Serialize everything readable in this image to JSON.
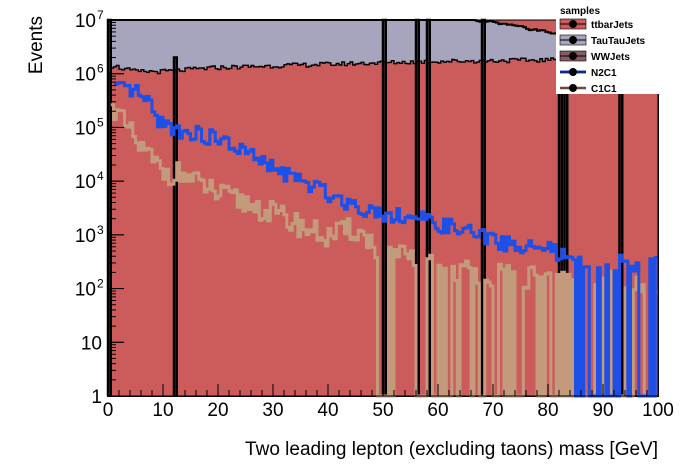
{
  "chart_data": {
    "type": "histogram",
    "title": "",
    "xlabel": "Two leading lepton (excluding taons) mass [GeV]",
    "ylabel": "Events",
    "xlim": [
      0,
      100
    ],
    "ylim": [
      1,
      10000000
    ],
    "yscale": "log",
    "grid": false,
    "x_ticks": [
      "0",
      "10",
      "20",
      "30",
      "40",
      "50",
      "60",
      "70",
      "80",
      "90",
      "100"
    ],
    "y_ticks": [
      {
        "value": 1,
        "label": "1"
      },
      {
        "value": 10,
        "label": "10"
      },
      {
        "value": 100,
        "label": "10",
        "exp": "2"
      },
      {
        "value": 1000,
        "label": "10",
        "exp": "3"
      },
      {
        "value": 10000,
        "label": "10",
        "exp": "4"
      },
      {
        "value": 100000,
        "label": "10",
        "exp": "5"
      },
      {
        "value": 1000000,
        "label": "10",
        "exp": "6"
      },
      {
        "value": 10000000,
        "label": "10",
        "exp": "7"
      }
    ],
    "legend_title": "samples",
    "legend_position": "top-right",
    "colors": {
      "ttbarJets": "#cc5c5c",
      "TauTauJets": "#a6a5bd",
      "WWJets": "#8c5a62",
      "N2C1": "#1e4fe6",
      "C1C1": "#c49a7c"
    },
    "series": [
      {
        "name": "ttbarJets",
        "style": "stacked-fill",
        "knots": [
          [
            0,
            25000
          ],
          [
            0.5,
            25000
          ],
          [
            1,
            350000
          ],
          [
            3,
            600000
          ],
          [
            5,
            700000
          ],
          [
            10,
            750000
          ],
          [
            20,
            780000
          ],
          [
            40,
            790000
          ],
          [
            50,
            800000
          ],
          [
            70,
            800000
          ],
          [
            90,
            810000
          ],
          [
            100,
            820000
          ]
        ],
        "spikes": [
          [
            0,
            10000000
          ],
          [
            12,
            2000000
          ],
          [
            50,
            10000000
          ],
          [
            56,
            10000000
          ],
          [
            58,
            10000000
          ],
          [
            68,
            10000000
          ],
          [
            82,
            10000000
          ],
          [
            83,
            10000000
          ],
          [
            93,
            10000000
          ]
        ]
      },
      {
        "name": "TauTauJets",
        "style": "stacked-fill",
        "knots": [
          [
            0,
            1000000
          ],
          [
            1,
            1500000
          ],
          [
            2,
            1300000
          ],
          [
            5,
            1100000
          ],
          [
            10,
            1100000
          ],
          [
            15,
            1200000
          ],
          [
            20,
            1300000
          ],
          [
            30,
            1400000
          ],
          [
            40,
            1500000
          ],
          [
            50,
            1600000
          ],
          [
            60,
            1700000
          ],
          [
            70,
            1750000
          ],
          [
            80,
            1800000
          ],
          [
            90,
            1800000
          ],
          [
            100,
            1900000
          ]
        ]
      },
      {
        "name": "WWJets",
        "style": "stacked-fill",
        "knots": [
          [
            0,
            11000000
          ],
          [
            60,
            11000000
          ],
          [
            70,
            9000000
          ],
          [
            80,
            6000000
          ],
          [
            90,
            4000000
          ],
          [
            100,
            3000000
          ]
        ]
      },
      {
        "name": "N2C1",
        "style": "line",
        "knots": [
          [
            1,
            500000
          ],
          [
            3,
            480000
          ],
          [
            5,
            480000
          ],
          [
            7,
            300000
          ],
          [
            9,
            150000
          ],
          [
            11,
            100000
          ],
          [
            14,
            85000
          ],
          [
            20,
            60000
          ],
          [
            25,
            35000
          ],
          [
            30,
            17000
          ],
          [
            33,
            13000
          ],
          [
            36,
            9000
          ],
          [
            40,
            6000
          ],
          [
            45,
            3500
          ],
          [
            50,
            2500
          ],
          [
            55,
            2200
          ],
          [
            60,
            1600
          ],
          [
            66,
            1100
          ],
          [
            70,
            800
          ],
          [
            75,
            600
          ],
          [
            80,
            550
          ],
          [
            85,
            300
          ],
          [
            100,
            300
          ]
        ]
      },
      {
        "name": "C1C1",
        "style": "line",
        "knots": [
          [
            0.3,
            1800000
          ],
          [
            1,
            200000
          ],
          [
            2,
            160000
          ],
          [
            4,
            80000
          ],
          [
            6,
            40000
          ],
          [
            8,
            25000
          ],
          [
            10,
            15000
          ],
          [
            12,
            14000
          ],
          [
            14,
            13000
          ],
          [
            16,
            9000
          ],
          [
            18,
            8000
          ],
          [
            20,
            5500
          ],
          [
            25,
            4000
          ],
          [
            30,
            2500
          ],
          [
            35,
            1500
          ],
          [
            40,
            900
          ],
          [
            45,
            1300
          ],
          [
            50,
            450
          ],
          [
            55,
            350
          ],
          [
            60,
            250
          ],
          [
            70,
            180
          ],
          [
            80,
            150
          ],
          [
            90,
            130
          ],
          [
            100,
            120
          ]
        ]
      }
    ]
  }
}
